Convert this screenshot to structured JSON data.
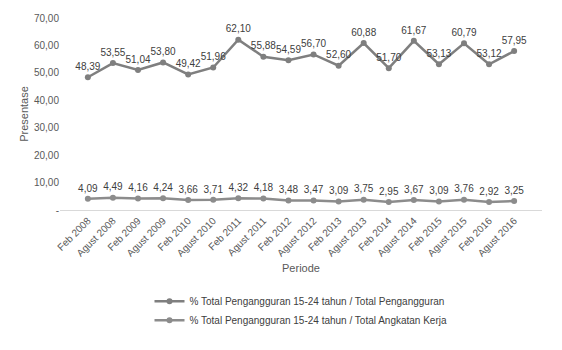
{
  "chart_data": {
    "type": "line",
    "x_label": "Periode",
    "y_label": "Presentase",
    "categories": [
      "Feb 2008",
      "Agust 2008",
      "Feb 2009",
      "Agust 2009",
      "Feb 2010",
      "Agust 2010",
      "Feb 2011",
      "Agust 2011",
      "Feb 2012",
      "Agust 2012",
      "Feb 2013",
      "Agust 2013",
      "Feb 2014",
      "Agust 2014",
      "Feb 2015",
      "Agust 2015",
      "Feb 2016",
      "Agust 2016"
    ],
    "series": [
      {
        "name": "% Total Pengangguran 15-24 tahun / Total Pengangguran",
        "color": "#7f7f7f",
        "marker": "circle",
        "values": [
          48.39,
          53.55,
          51.04,
          53.8,
          49.42,
          51.96,
          62.1,
          55.88,
          54.59,
          56.7,
          52.6,
          60.88,
          51.7,
          61.67,
          53.13,
          60.79,
          53.12,
          57.95
        ],
        "value_labels": [
          "48,39",
          "53,55",
          "51,04",
          "53,80",
          "49,42",
          "51,96",
          "62,10",
          "55,88",
          "54,59",
          "56,70",
          "52,60",
          "60,88",
          "51,70",
          "61,67",
          "53,13",
          "60,79",
          "53,12",
          "57,95"
        ]
      },
      {
        "name": "% Total Pengangguran 15-24 tahun / Total Angkatan Kerja",
        "color": "#8c8c8c",
        "marker": "circle",
        "values": [
          4.09,
          4.49,
          4.16,
          4.24,
          3.66,
          3.71,
          4.32,
          4.18,
          3.48,
          3.47,
          3.09,
          3.75,
          2.95,
          3.67,
          3.09,
          3.76,
          2.92,
          3.25
        ],
        "value_labels": [
          "4,09",
          "4,49",
          "4,16",
          "4,24",
          "3,66",
          "3,71",
          "4,32",
          "4,18",
          "3,48",
          "3,47",
          "3,09",
          "3,75",
          "2,95",
          "3,67",
          "3,09",
          "3,76",
          "2,92",
          "3,25"
        ]
      }
    ],
    "ylim": [
      0,
      70
    ],
    "yticks": [
      {
        "value": 0,
        "label": "-"
      },
      {
        "value": 10,
        "label": "10,00"
      },
      {
        "value": 20,
        "label": "20,00"
      },
      {
        "value": 30,
        "label": "30,00"
      },
      {
        "value": 40,
        "label": "40,00"
      },
      {
        "value": 50,
        "label": "50,00"
      },
      {
        "value": 60,
        "label": "60,00"
      },
      {
        "value": 70,
        "label": "70,00"
      }
    ],
    "grid": false,
    "legend": "bottom",
    "data_labels": true
  }
}
